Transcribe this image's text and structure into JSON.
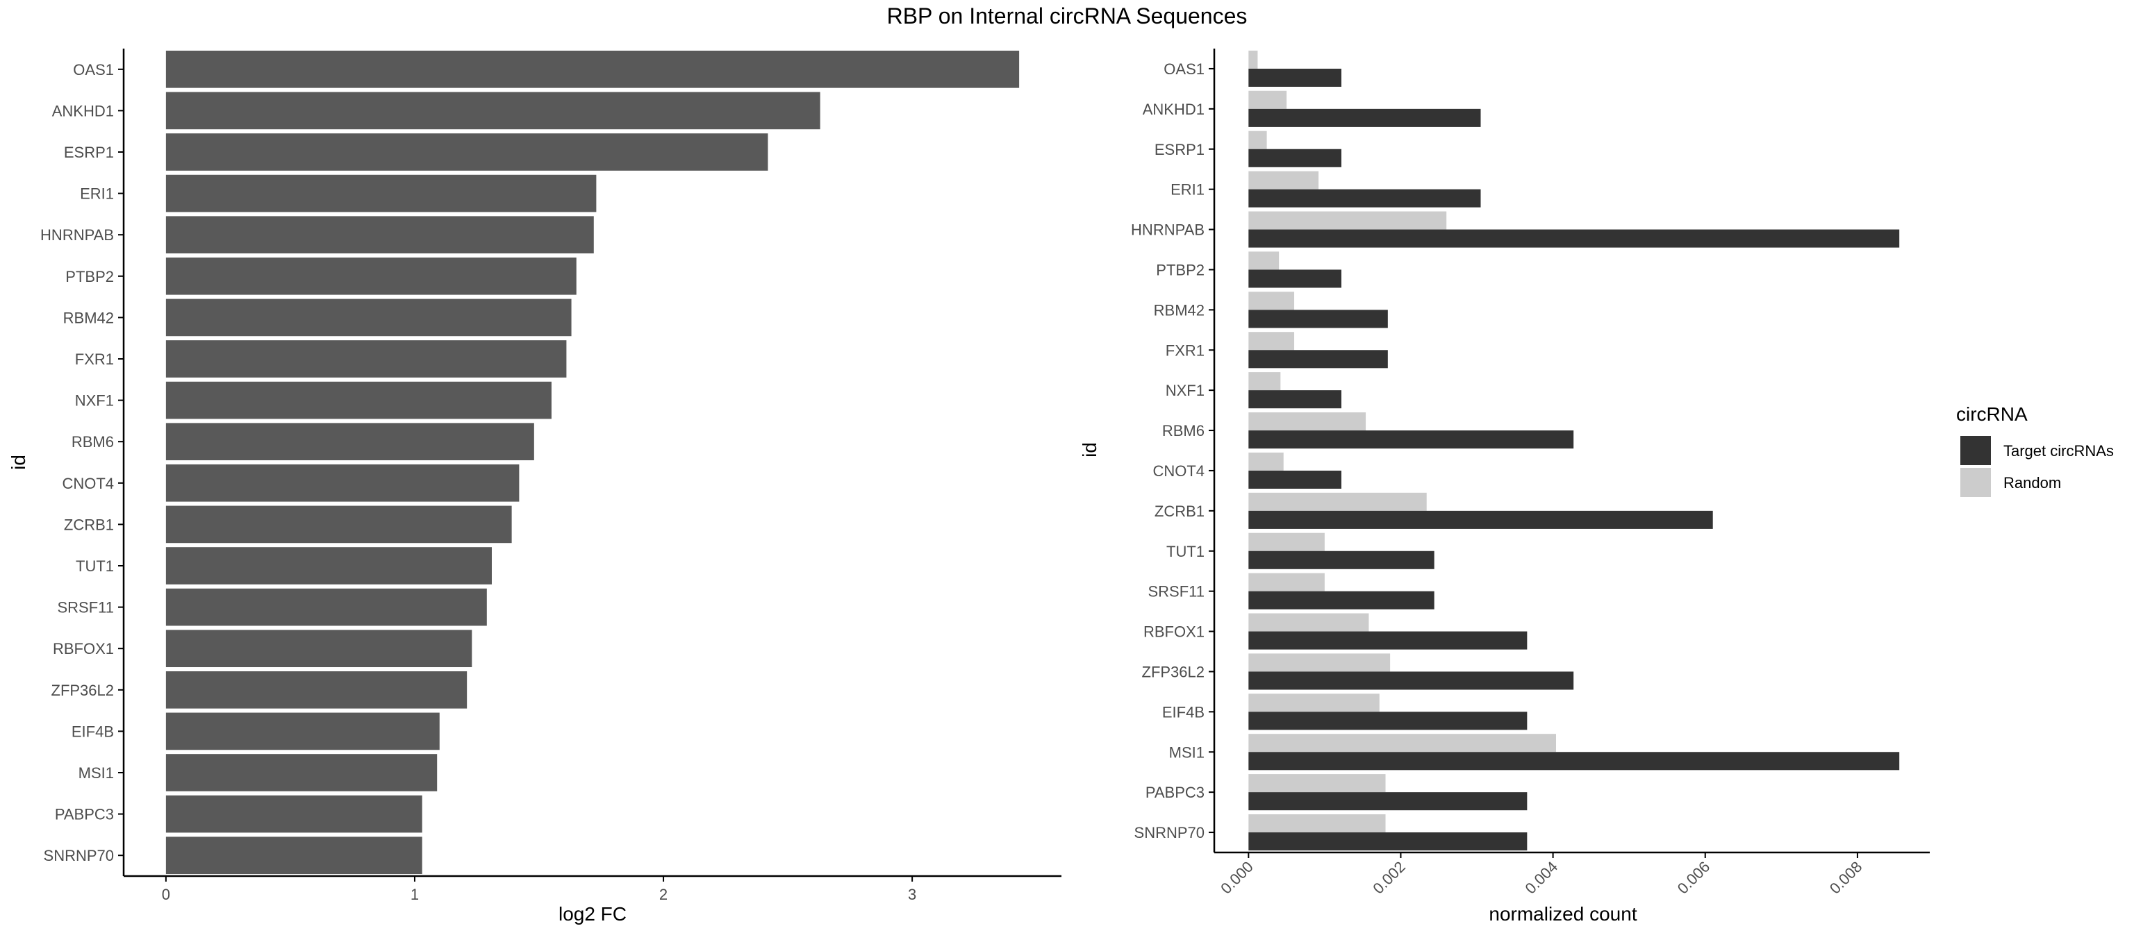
{
  "title": "RBP on Internal circRNA Sequences",
  "colors": {
    "bar_left": "#595959",
    "target": "#333333",
    "random": "#cccccc",
    "axis": "#000000",
    "tick_text": "#4d4d4d"
  },
  "chart_data": [
    {
      "type": "bar",
      "orientation": "horizontal",
      "xlabel": "log2 FC",
      "ylabel": "id",
      "xlim": [
        -0.17,
        3.6
      ],
      "xticks": [
        0,
        1,
        2,
        3
      ],
      "xtick_labels": [
        "0",
        "1",
        "2",
        "3"
      ],
      "categories": [
        "OAS1",
        "ANKHD1",
        "ESRP1",
        "ERI1",
        "HNRNPAB",
        "PTBP2",
        "RBM42",
        "FXR1",
        "NXF1",
        "RBM6",
        "CNOT4",
        "ZCRB1",
        "TUT1",
        "SRSF11",
        "RBFOX1",
        "ZFP36L2",
        "EIF4B",
        "MSI1",
        "PABPC3",
        "SNRNP70"
      ],
      "values": [
        3.43,
        2.63,
        2.42,
        1.73,
        1.72,
        1.65,
        1.63,
        1.61,
        1.55,
        1.48,
        1.42,
        1.39,
        1.31,
        1.29,
        1.23,
        1.21,
        1.1,
        1.09,
        1.03,
        1.03
      ],
      "grid": false
    },
    {
      "type": "bar",
      "orientation": "horizontal",
      "grouped": true,
      "xlabel": "normalized count",
      "ylabel": "id",
      "xlim": [
        -0.00045,
        0.00895
      ],
      "xticks": [
        0,
        0.002,
        0.004,
        0.006,
        0.008
      ],
      "xtick_labels": [
        "0.000",
        "0.002",
        "0.004",
        "0.006",
        "0.008"
      ],
      "categories": [
        "OAS1",
        "ANKHD1",
        "ESRP1",
        "ERI1",
        "HNRNPAB",
        "PTBP2",
        "RBM42",
        "FXR1",
        "NXF1",
        "RBM6",
        "CNOT4",
        "ZCRB1",
        "TUT1",
        "SRSF11",
        "RBFOX1",
        "ZFP36L2",
        "EIF4B",
        "MSI1",
        "PABPC3",
        "SNRNP70"
      ],
      "series": [
        {
          "name": "Target circRNAs",
          "values": [
            0.00122,
            0.00305,
            0.00122,
            0.00305,
            0.00855,
            0.00122,
            0.00183,
            0.00183,
            0.00122,
            0.00427,
            0.00122,
            0.0061,
            0.00244,
            0.00244,
            0.00366,
            0.00427,
            0.00366,
            0.00855,
            0.00366,
            0.00366
          ]
        },
        {
          "name": "Random",
          "values": [
            0.00012,
            0.0005,
            0.00024,
            0.00092,
            0.0026,
            0.0004,
            0.0006,
            0.0006,
            0.00042,
            0.00154,
            0.00046,
            0.00234,
            0.001,
            0.001,
            0.00158,
            0.00186,
            0.00172,
            0.00404,
            0.0018,
            0.0018
          ]
        }
      ],
      "legend": {
        "title": "circRNA",
        "entries": [
          "Target circRNAs",
          "Random"
        ],
        "position": "right"
      },
      "grid": false
    }
  ]
}
